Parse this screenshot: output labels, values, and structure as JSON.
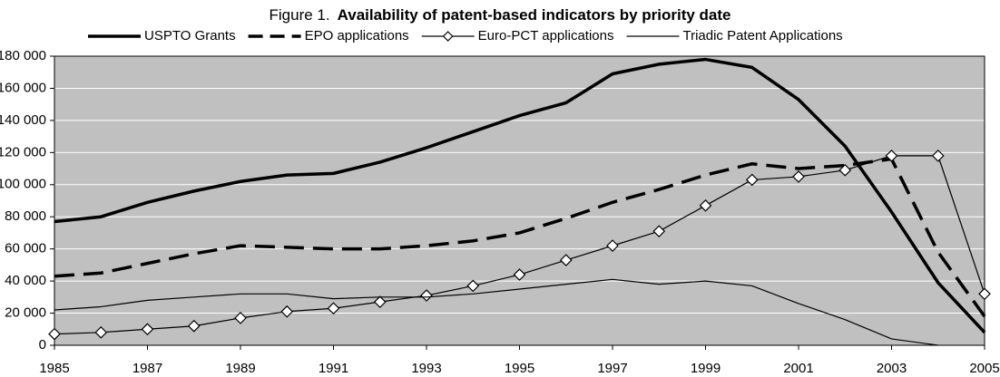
{
  "chart_data": {
    "type": "line",
    "title_label": "Figure 1.",
    "title": "Availability of patent-based indicators by priority date",
    "x": [
      1985,
      1986,
      1987,
      1988,
      1989,
      1990,
      1991,
      1992,
      1993,
      1994,
      1995,
      1996,
      1997,
      1998,
      1999,
      2000,
      2001,
      2002,
      2003,
      2004,
      2005
    ],
    "xlim": [
      1985,
      2005
    ],
    "xticks": [
      1985,
      1987,
      1989,
      1991,
      1993,
      1995,
      1997,
      1999,
      2001,
      2003,
      2005
    ],
    "ylim": [
      0,
      180000
    ],
    "yticks": [
      {
        "value": 0,
        "label": "0"
      },
      {
        "value": 20000,
        "label": "20 000"
      },
      {
        "value": 40000,
        "label": "40 000"
      },
      {
        "value": 60000,
        "label": "60 000"
      },
      {
        "value": 80000,
        "label": "80 000"
      },
      {
        "value": 100000,
        "label": "100 000"
      },
      {
        "value": 120000,
        "label": "120 000"
      },
      {
        "value": 140000,
        "label": "140 000"
      },
      {
        "value": 160000,
        "label": "160 000"
      },
      {
        "value": 180000,
        "label": "180 000"
      }
    ],
    "grid": true,
    "background": "#c0c0c0",
    "grid_color": "#ffffff",
    "series": [
      {
        "name": "USPTO Grants",
        "color": "#000000",
        "width": 3.5,
        "style": "solid",
        "marker": null,
        "values": [
          77000,
          80000,
          89000,
          96000,
          102000,
          106000,
          107000,
          114000,
          123000,
          133000,
          143000,
          151000,
          169000,
          175000,
          178000,
          173000,
          153000,
          124000,
          83000,
          39000,
          8000
        ]
      },
      {
        "name": "EPO applications",
        "color": "#000000",
        "width": 3.5,
        "style": "dashed",
        "marker": null,
        "values": [
          43000,
          45000,
          51000,
          57000,
          62000,
          61000,
          60000,
          60000,
          62000,
          65000,
          70000,
          79000,
          89000,
          97000,
          106000,
          113000,
          110000,
          112000,
          116000,
          58000,
          18000
        ]
      },
      {
        "name": "Euro-PCT applications",
        "color": "#000000",
        "width": 1.2,
        "style": "solid",
        "marker": "diamond",
        "values": [
          7000,
          8000,
          10000,
          12000,
          17000,
          21000,
          23000,
          27000,
          31000,
          37000,
          44000,
          53000,
          62000,
          71000,
          87000,
          103000,
          105000,
          109000,
          118000,
          118000,
          32000
        ]
      },
      {
        "name": "Triadic Patent Applications",
        "color": "#000000",
        "width": 1.2,
        "style": "solid",
        "marker": null,
        "values": [
          22000,
          24000,
          28000,
          30000,
          32000,
          32000,
          29000,
          30000,
          30000,
          32000,
          35000,
          38000,
          41000,
          38000,
          40000,
          37000,
          26000,
          16000,
          4000,
          0,
          null
        ]
      }
    ]
  }
}
